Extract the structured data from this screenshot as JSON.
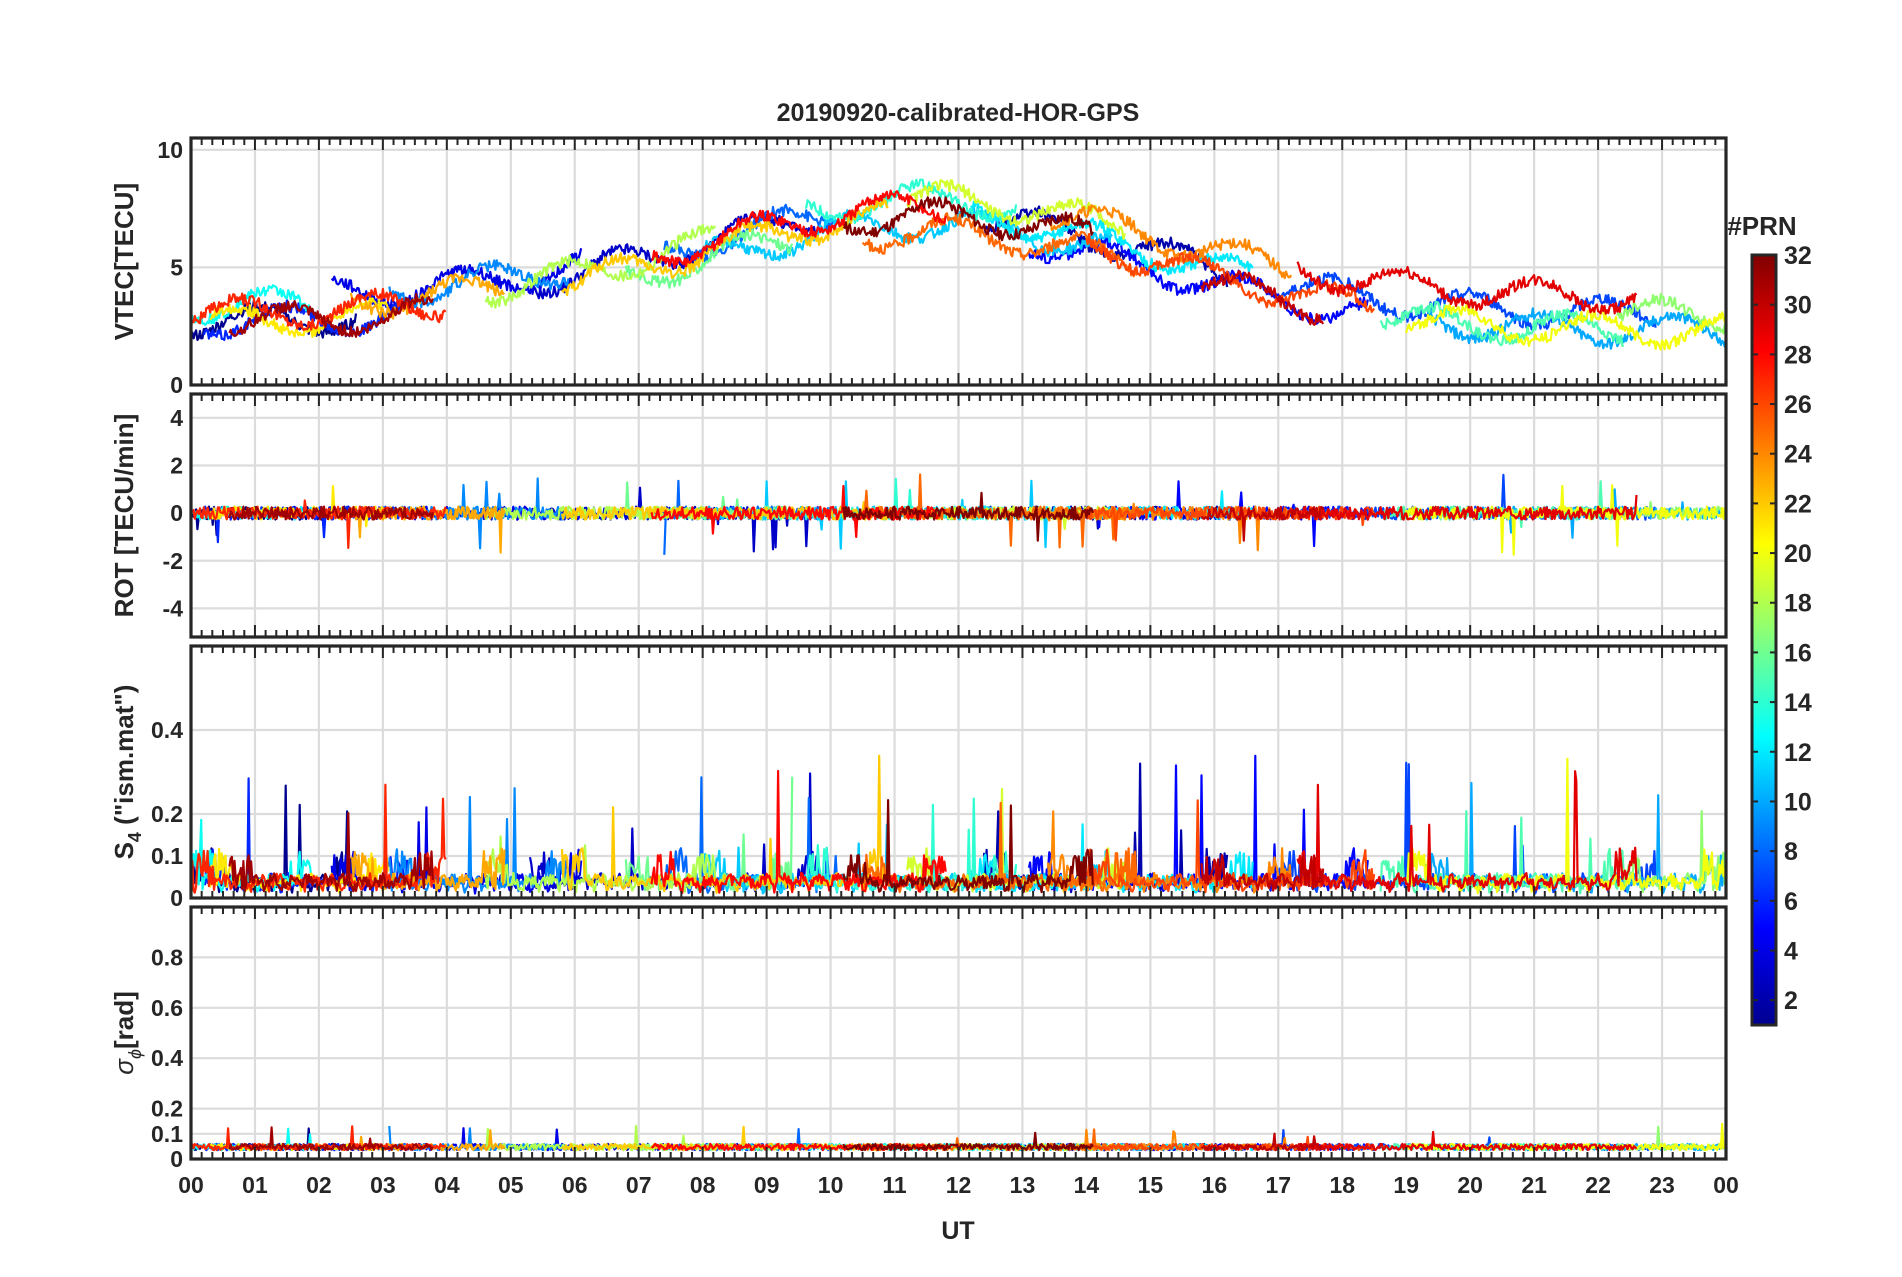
{
  "chart_data": {
    "type": "line",
    "title": "20190920-calibrated-HOR-GPS",
    "xlabel": "UT",
    "x_ticks": [
      "00",
      "01",
      "02",
      "03",
      "04",
      "05",
      "06",
      "07",
      "08",
      "09",
      "10",
      "11",
      "12",
      "13",
      "14",
      "15",
      "16",
      "17",
      "18",
      "19",
      "20",
      "21",
      "22",
      "23",
      "00"
    ],
    "xlim": [
      0,
      24
    ],
    "panels": [
      {
        "id": "vtec",
        "ylabel": "VTEC[TECU]",
        "ylim": [
          0,
          10.5
        ],
        "yticks": [
          0,
          5,
          10
        ],
        "ytick_labels": [
          "0",
          "5",
          "10"
        ],
        "grid": true
      },
      {
        "id": "rot",
        "ylabel": "ROT [TECU/min]",
        "ylim": [
          -5.2,
          5
        ],
        "yticks": [
          -4,
          -2,
          0,
          2,
          4
        ],
        "ytick_labels": [
          "-4",
          "-2",
          "0",
          "2",
          "4"
        ],
        "grid": true
      },
      {
        "id": "s4",
        "ylabel_main": "S",
        "ylabel_sub": "4",
        "ylabel_rest": " (\"ism.mat\")",
        "ylim": [
          0,
          0.6
        ],
        "yticks": [
          0,
          0.1,
          0.2,
          0.4
        ],
        "ytick_labels": [
          "0",
          "0.1",
          "0.2",
          "0.4"
        ],
        "grid": true
      },
      {
        "id": "sigma",
        "ylabel_main": "σ",
        "ylabel_sub": "ϕ",
        "ylabel_rest": "[rad]",
        "ylim": [
          0,
          1
        ],
        "yticks": [
          0,
          0.1,
          0.2,
          0.4,
          0.6,
          0.8
        ],
        "ytick_labels": [
          "0",
          "0.1",
          "0.2",
          "0.4",
          "0.6",
          "0.8"
        ],
        "grid": true
      }
    ],
    "colorbar": {
      "label": "#PRN",
      "range": [
        1,
        32
      ],
      "ticks": [
        2,
        4,
        6,
        8,
        10,
        12,
        14,
        16,
        18,
        20,
        22,
        24,
        26,
        28,
        30,
        32
      ],
      "tick_labels": [
        "2",
        "4",
        "6",
        "8",
        "10",
        "12",
        "14",
        "16",
        "18",
        "20",
        "22",
        "24",
        "26",
        "28",
        "30",
        "32"
      ],
      "colormap": "jet",
      "colors": [
        "#00008f",
        "#0000ff",
        "#0080ff",
        "#00ffff",
        "#80ff80",
        "#ffff00",
        "#ff8000",
        "#ff0000",
        "#800000"
      ]
    },
    "series": [
      {
        "prn": 1,
        "start": 0.0,
        "end": 2.6,
        "seed": 11
      },
      {
        "prn": 2,
        "start": 12.4,
        "end": 16.2,
        "seed": 12
      },
      {
        "prn": 3,
        "start": 5.3,
        "end": 9.8,
        "seed": 13
      },
      {
        "prn": 4,
        "start": 2.2,
        "end": 6.1,
        "seed": 14
      },
      {
        "prn": 5,
        "start": 13.1,
        "end": 18.4,
        "seed": 15
      },
      {
        "prn": 6,
        "start": 0.2,
        "end": 3.4,
        "seed": 16
      },
      {
        "prn": 7,
        "start": 17.0,
        "end": 22.9,
        "seed": 17
      },
      {
        "prn": 8,
        "start": 7.4,
        "end": 10.1,
        "seed": 18
      },
      {
        "prn": 9,
        "start": 3.1,
        "end": 5.9,
        "seed": 19
      },
      {
        "prn": 10,
        "start": 19.3,
        "end": 24.0,
        "seed": 20
      },
      {
        "prn": 11,
        "start": 8.0,
        "end": 14.4,
        "seed": 21
      },
      {
        "prn": 12,
        "start": 12.2,
        "end": 16.6,
        "seed": 22
      },
      {
        "prn": 13,
        "start": 0.0,
        "end": 1.9,
        "seed": 23
      },
      {
        "prn": 14,
        "start": 9.6,
        "end": 12.9,
        "seed": 24
      },
      {
        "prn": 15,
        "start": 18.6,
        "end": 22.4,
        "seed": 25
      },
      {
        "prn": 16,
        "start": 6.8,
        "end": 9.4,
        "seed": 26
      },
      {
        "prn": 17,
        "start": 22.3,
        "end": 24.0,
        "seed": 27
      },
      {
        "prn": 18,
        "start": 4.6,
        "end": 8.2,
        "seed": 28
      },
      {
        "prn": 19,
        "start": 11.2,
        "end": 14.6,
        "seed": 29
      },
      {
        "prn": 20,
        "start": 19.0,
        "end": 24.0,
        "seed": 30
      },
      {
        "prn": 21,
        "start": 0.3,
        "end": 3.1,
        "seed": 31
      },
      {
        "prn": 22,
        "start": 5.8,
        "end": 10.9,
        "seed": 32
      },
      {
        "prn": 23,
        "start": 2.5,
        "end": 4.9,
        "seed": 33
      },
      {
        "prn": 24,
        "start": 13.4,
        "end": 17.2,
        "seed": 34
      },
      {
        "prn": 25,
        "start": 10.5,
        "end": 14.8,
        "seed": 35
      },
      {
        "prn": 26,
        "start": 14.0,
        "end": 18.5,
        "seed": 36
      },
      {
        "prn": 27,
        "start": 0.0,
        "end": 4.0,
        "seed": 37
      },
      {
        "prn": 28,
        "start": 7.2,
        "end": 11.8,
        "seed": 38
      },
      {
        "prn": 29,
        "start": 17.3,
        "end": 22.6,
        "seed": 39
      },
      {
        "prn": 30,
        "start": 15.8,
        "end": 17.7,
        "seed": 40
      },
      {
        "prn": 31,
        "start": 0.6,
        "end": 3.8,
        "seed": 41
      },
      {
        "prn": 32,
        "start": 10.2,
        "end": 14.1,
        "seed": 42
      }
    ]
  }
}
